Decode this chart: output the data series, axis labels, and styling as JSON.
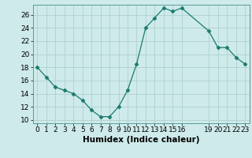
{
  "x": [
    0,
    1,
    2,
    3,
    4,
    5,
    6,
    7,
    8,
    9,
    10,
    11,
    12,
    13,
    14,
    15,
    16,
    19,
    20,
    21,
    22,
    23
  ],
  "y": [
    18,
    16.5,
    15,
    14.5,
    14,
    13,
    11.5,
    10.5,
    10.5,
    12,
    14.5,
    18.5,
    24,
    25.5,
    27,
    26.5,
    27,
    23.5,
    21,
    21,
    19.5,
    18.5
  ],
  "xlabel": "Humidex (Indice chaleur)",
  "xlim": [
    -0.5,
    23.5
  ],
  "ylim": [
    9.5,
    27.5
  ],
  "yticks": [
    10,
    12,
    14,
    16,
    18,
    20,
    22,
    24,
    26
  ],
  "xtick_positions": [
    0,
    1,
    2,
    3,
    4,
    5,
    6,
    7,
    8,
    9,
    10,
    11,
    12,
    13,
    14,
    15,
    16,
    19,
    20,
    21,
    22,
    23
  ],
  "xtick_labels": [
    "0",
    "1",
    "2",
    "3",
    "4",
    "5",
    "6",
    "7",
    "8",
    "9",
    "10",
    "11",
    "12",
    "13",
    "14",
    "15",
    "16",
    "19",
    "20",
    "21",
    "22",
    "23"
  ],
  "line_color": "#1a7a6e",
  "marker": "D",
  "marker_size": 2.5,
  "bg_color": "#ceeaea",
  "grid_color": "#b0d0d0",
  "xlabel_fontsize": 7.5,
  "tick_fontsize": 6.5
}
